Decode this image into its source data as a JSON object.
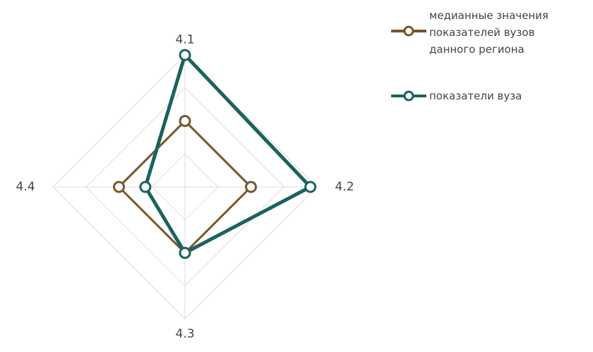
{
  "chart_data": {
    "type": "radar",
    "categories": [
      "4.1",
      "4.2",
      "4.3",
      "4.4"
    ],
    "rlim": [
      0,
      4
    ],
    "rticks": [
      1,
      2,
      3,
      4
    ],
    "grid": true,
    "series": [
      {
        "name": "медианные значения показателей вузов данного региона",
        "color": "#7a5428",
        "values": [
          2.0,
          2.0,
          2.0,
          2.0
        ]
      },
      {
        "name": "показатели вуза",
        "color": "#1b625f",
        "values": [
          4.0,
          3.8,
          2.0,
          1.2
        ]
      }
    ]
  }
}
